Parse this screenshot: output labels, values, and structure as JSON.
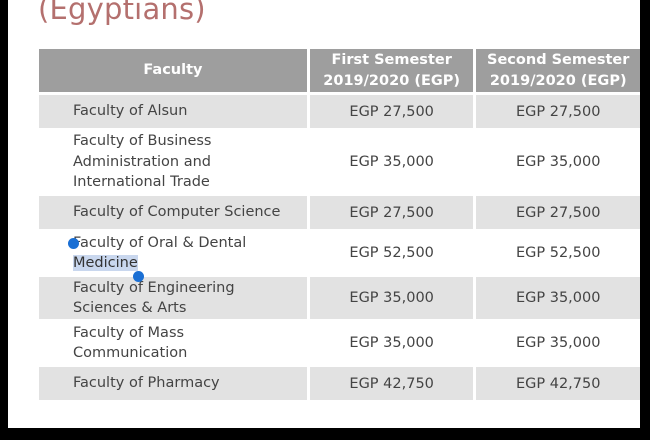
{
  "heading": "(Egyptians)",
  "table": {
    "headers": {
      "faculty": "Faculty",
      "first_semester": [
        "First Semester",
        "2019/2020 (EGP)"
      ],
      "second_semester": [
        "Second Semester",
        "2019/2020 (EGP)"
      ]
    },
    "rows": [
      {
        "faculty": [
          "Faculty of Alsun"
        ],
        "first": "EGP 27,500",
        "second": "EGP 27,500"
      },
      {
        "faculty": [
          "Faculty of Business",
          "Administration and",
          "International Trade"
        ],
        "first": "EGP 35,000",
        "second": "EGP 35,000"
      },
      {
        "faculty": [
          "Faculty of Computer Science"
        ],
        "first": "EGP 27,500",
        "second": "EGP 27,500"
      },
      {
        "faculty": [
          "Faculty of Oral & Dental",
          "Medicine"
        ],
        "first": "EGP 52,500",
        "second": "EGP 52,500"
      },
      {
        "faculty": [
          "Faculty of Engineering",
          "Sciences & Arts"
        ],
        "first": "EGP 35,000",
        "second": "EGP 35,000"
      },
      {
        "faculty": [
          "Faculty of Mass",
          "Communication"
        ],
        "first": "EGP 35,000",
        "second": "EGP 35,000"
      },
      {
        "faculty": [
          "Faculty of Pharmacy"
        ],
        "first": "EGP 42,750",
        "second": "EGP 42,750"
      }
    ]
  },
  "colors": {
    "heading": "#b4706e",
    "header_bg": "#9e9e9e",
    "shaded_row": "#e2e2e2",
    "selection": "#c9d7ee",
    "selection_handle": "#1a6fd4"
  },
  "selection": {
    "selected_text": "Medicine"
  }
}
